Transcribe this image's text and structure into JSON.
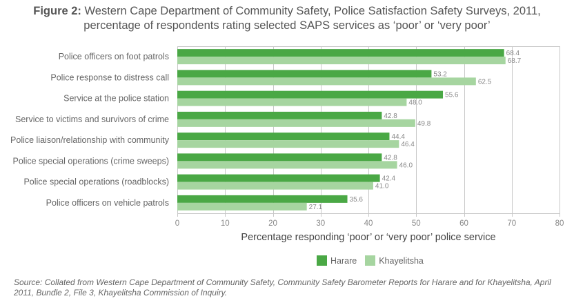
{
  "title": {
    "prefix": "Figure 2:",
    "line1": " Western Cape Department of Community Safety, Police Satisfaction Safety Surveys, 2011,",
    "line2": "percentage of respondents rating selected SAPS services as ‘poor’ or ‘very poor’"
  },
  "colors": {
    "harare": "#4aa845",
    "khayelitsha": "#a6d5a0",
    "grid": "#c8c8c8"
  },
  "chart_data": {
    "type": "bar",
    "orientation": "horizontal",
    "title": "Figure 2: Western Cape Department of Community Safety, Police Satisfaction Safety Surveys, 2011, percentage of respondents rating selected SAPS services as ‘poor’ or ‘very poor’",
    "categories": [
      "Police officers on foot patrols",
      "Police response to distress call",
      "Service at the police station",
      "Service to victims and survivors of crime",
      "Police liaison/relationship with community",
      "Police special operations (crime sweeps)",
      "Police special operations (roadblocks)",
      "Police officers on vehicle patrols"
    ],
    "series": [
      {
        "name": "Harare",
        "values": [
          68.4,
          53.2,
          55.6,
          42.8,
          44.4,
          42.8,
          42.4,
          35.6
        ]
      },
      {
        "name": "Khayelitsha",
        "values": [
          68.7,
          62.5,
          48.0,
          49.8,
          46.4,
          46.0,
          41.0,
          27.1
        ]
      }
    ],
    "value_labels": [
      [
        "68.4",
        "53.2",
        "55.6",
        "42.8",
        "44.4",
        "42.8",
        "42.4",
        "35.6"
      ],
      [
        "68.7",
        "62.5",
        "48.0",
        "49.8",
        "46.4",
        "46.0",
        "41.0",
        "27.1"
      ]
    ],
    "xlabel": "Percentage responding ‘poor’ or ‘very poor’ police service",
    "ylabel": "",
    "xlim": [
      0,
      80
    ],
    "xticks": [
      0,
      10,
      20,
      30,
      40,
      50,
      60,
      70,
      80
    ],
    "grid": true,
    "legend": {
      "position": "bottom-center",
      "entries": [
        "Harare",
        "Khayelitsha"
      ]
    }
  },
  "source": "Source: Collated from Western Cape Department of Community Safety, Community Safety Barometer Reports for Harare and for Khayelitsha, April 2011, Bundle 2, File 3, Khayelitsha Commission of Inquiry."
}
